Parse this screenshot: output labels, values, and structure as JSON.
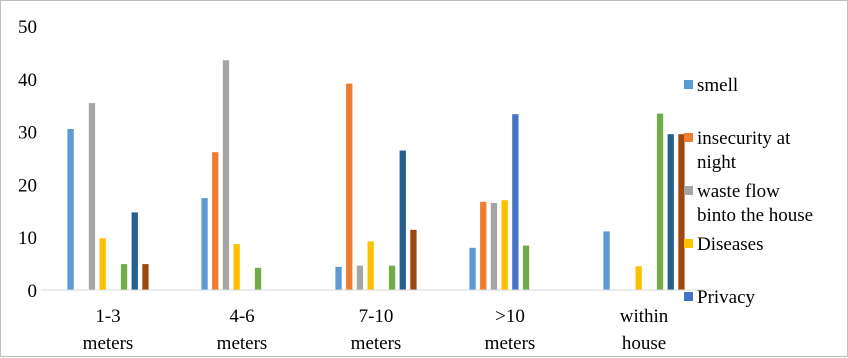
{
  "chart_data": {
    "type": "bar",
    "title": "",
    "xlabel": "",
    "ylabel": "",
    "ylim": [
      0,
      50
    ],
    "yticks": [
      0,
      10,
      20,
      30,
      40,
      50
    ],
    "grid": false,
    "legend_position": "right",
    "categories": [
      "1-3 meters",
      "4-6 meters",
      "7-10 meters",
      ">10 meters",
      "within house"
    ],
    "category_lines": [
      [
        "1-3",
        "meters"
      ],
      [
        "4-6",
        "meters"
      ],
      [
        "7-10",
        "meters"
      ],
      [
        ">10",
        "meters"
      ],
      [
        "within",
        "house"
      ]
    ],
    "series": [
      {
        "name": "smell",
        "color": "#5b9bd5",
        "values": [
          30.5,
          17.4,
          4.4,
          8.0,
          11.1
        ]
      },
      {
        "name": "insecurity at night",
        "color": "#ed7d31",
        "values": [
          0,
          26.1,
          39.1,
          16.7,
          0
        ]
      },
      {
        "name": "waste flow into the house",
        "color": "#a5a5a5",
        "values": [
          35.4,
          43.5,
          4.6,
          16.5,
          0
        ]
      },
      {
        "name": "Diseases",
        "color": "#ffc000",
        "values": [
          9.8,
          8.7,
          9.2,
          17.0,
          4.5
        ]
      },
      {
        "name": "Privacy",
        "color": "#4472c4",
        "values": [
          0,
          0,
          0,
          33.3,
          0
        ]
      },
      {
        "name": "",
        "color": "#70ad47",
        "values": [
          4.9,
          4.2,
          4.6,
          8.4,
          33.4
        ]
      },
      {
        "name": "",
        "color": "#255e91",
        "values": [
          14.7,
          0,
          26.4,
          0,
          29.5
        ]
      },
      {
        "name": "",
        "color": "#9e480e",
        "values": [
          4.9,
          0,
          11.4,
          0,
          29.5
        ]
      }
    ],
    "legend_items": [
      {
        "lines": [
          "smell"
        ],
        "color": "#5b9bd5"
      },
      {
        "lines": [
          "insecurity at",
          "night"
        ],
        "color": "#ed7d31"
      },
      {
        "lines": [
          "waste flow",
          "binto the house"
        ],
        "color": "#a5a5a5"
      },
      {
        "lines": [
          "Diseases"
        ],
        "color": "#ffc000"
      },
      {
        "lines": [
          "Privacy"
        ],
        "color": "#4472c4"
      }
    ]
  }
}
